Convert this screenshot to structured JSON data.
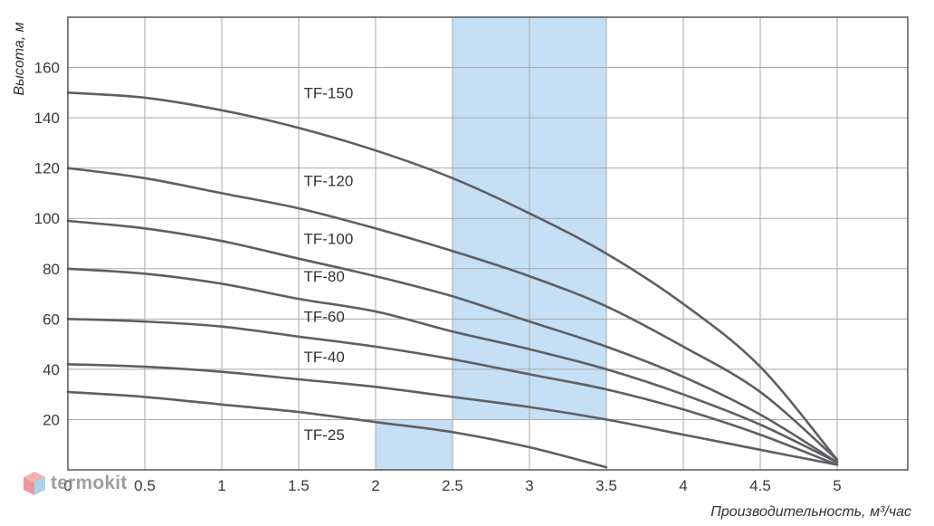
{
  "chart_data": {
    "type": "line",
    "xlabel": "Производительность, м³/час",
    "ylabel": "Высота, м",
    "xlim": [
      0,
      5.5
    ],
    "ylim": [
      0,
      180
    ],
    "x_ticks": [
      "0",
      "0.5",
      "1",
      "1.5",
      "2",
      "2.5",
      "3",
      "3.5",
      "4",
      "4.5",
      "5"
    ],
    "x_tick_values": [
      0,
      0.5,
      1,
      1.5,
      2,
      2.5,
      3,
      3.5,
      4,
      4.5,
      5
    ],
    "y_ticks": [
      "20",
      "40",
      "60",
      "80",
      "100",
      "120",
      "140",
      "160"
    ],
    "y_tick_values": [
      20,
      40,
      60,
      80,
      100,
      120,
      140,
      160
    ],
    "grid": true,
    "highlight_regions": [
      {
        "x": [
          2.5,
          3.5
        ],
        "y": [
          20,
          180
        ]
      },
      {
        "x": [
          2.0,
          2.5
        ],
        "y": [
          0,
          20
        ]
      }
    ],
    "series": [
      {
        "name": "TF-150",
        "label_at": [
          1.55,
          150
        ],
        "points": [
          [
            0,
            150
          ],
          [
            0.5,
            148
          ],
          [
            1,
            143
          ],
          [
            1.5,
            136
          ],
          [
            2,
            127
          ],
          [
            2.5,
            116
          ],
          [
            3,
            102
          ],
          [
            3.5,
            86
          ],
          [
            4,
            66
          ],
          [
            4.5,
            41
          ],
          [
            5,
            4
          ]
        ]
      },
      {
        "name": "TF-120",
        "label_at": [
          1.55,
          115
        ],
        "points": [
          [
            0,
            120
          ],
          [
            0.5,
            116
          ],
          [
            1,
            110
          ],
          [
            1.5,
            104
          ],
          [
            2,
            96
          ],
          [
            2.5,
            87
          ],
          [
            3,
            77
          ],
          [
            3.5,
            65
          ],
          [
            4,
            49
          ],
          [
            4.5,
            31
          ],
          [
            5,
            4
          ]
        ]
      },
      {
        "name": "TF-100",
        "label_at": [
          1.55,
          92
        ],
        "points": [
          [
            0,
            99
          ],
          [
            0.5,
            96
          ],
          [
            1,
            91
          ],
          [
            1.5,
            84
          ],
          [
            2,
            77
          ],
          [
            2.5,
            69
          ],
          [
            3,
            59
          ],
          [
            3.5,
            49
          ],
          [
            4,
            37
          ],
          [
            4.5,
            22
          ],
          [
            5,
            3
          ]
        ]
      },
      {
        "name": "TF-80",
        "label_at": [
          1.55,
          77
        ],
        "points": [
          [
            0,
            80
          ],
          [
            0.5,
            78
          ],
          [
            1,
            74
          ],
          [
            1.5,
            68
          ],
          [
            2,
            63
          ],
          [
            2.5,
            55
          ],
          [
            3,
            48
          ],
          [
            3.5,
            40
          ],
          [
            4,
            30
          ],
          [
            4.5,
            18
          ],
          [
            5,
            3
          ]
        ]
      },
      {
        "name": "TF-60",
        "label_at": [
          1.55,
          61
        ],
        "points": [
          [
            0,
            60
          ],
          [
            0.5,
            59
          ],
          [
            1,
            57
          ],
          [
            1.5,
            53
          ],
          [
            2,
            49
          ],
          [
            2.5,
            44
          ],
          [
            3,
            38
          ],
          [
            3.5,
            32
          ],
          [
            4,
            24
          ],
          [
            4.5,
            14
          ],
          [
            5,
            2
          ]
        ]
      },
      {
        "name": "TF-40",
        "label_at": [
          1.55,
          45
        ],
        "points": [
          [
            0,
            42
          ],
          [
            0.5,
            41
          ],
          [
            1,
            39
          ],
          [
            1.5,
            36
          ],
          [
            2,
            33
          ],
          [
            2.5,
            29
          ],
          [
            3,
            25
          ],
          [
            3.5,
            20
          ],
          [
            4,
            14
          ],
          [
            4.5,
            8
          ],
          [
            5,
            2
          ]
        ]
      },
      {
        "name": "TF-25",
        "label_at": [
          1.55,
          14
        ],
        "points": [
          [
            0,
            31
          ],
          [
            0.5,
            29
          ],
          [
            1,
            26
          ],
          [
            1.5,
            23
          ],
          [
            2,
            19
          ],
          [
            2.5,
            15
          ],
          [
            3,
            9
          ],
          [
            3.5,
            1
          ]
        ]
      }
    ]
  },
  "watermark": {
    "text": "termokit",
    "icon": "cube-logo-icon"
  }
}
